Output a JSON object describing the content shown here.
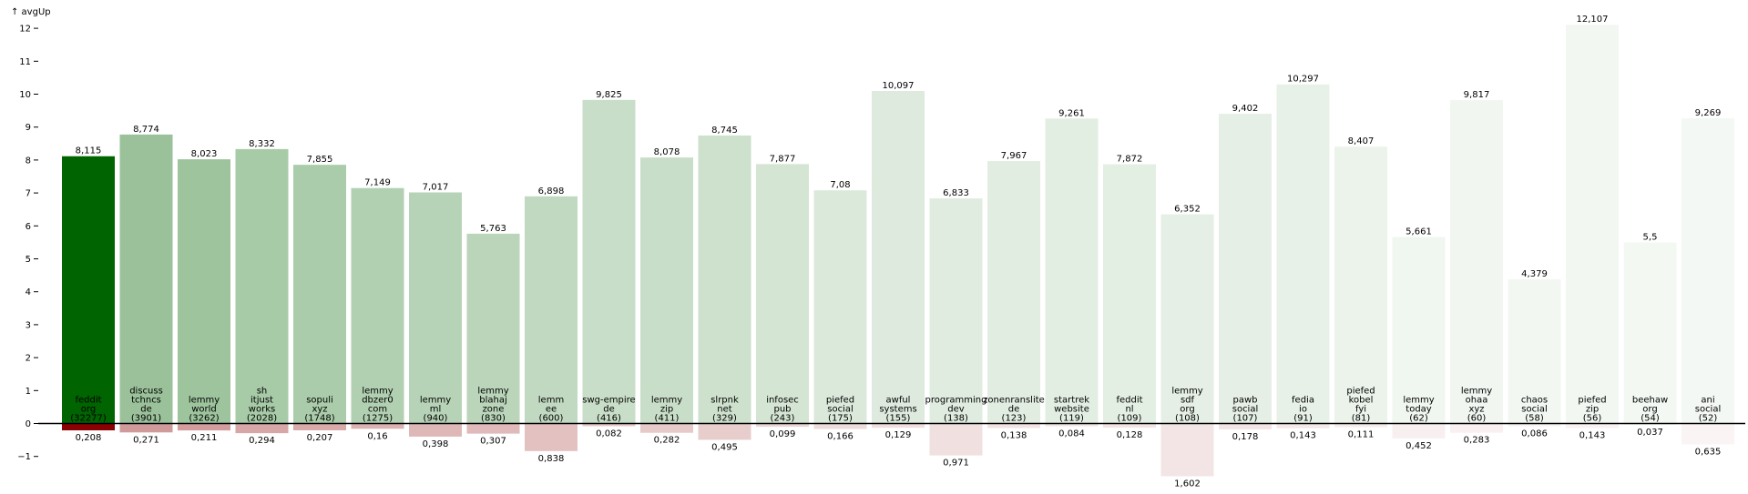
{
  "chart_data": {
    "type": "bar",
    "ylabel": "↑ avgUp",
    "ylim": [
      -2,
      12.2
    ],
    "yticks": [
      -1,
      0,
      1,
      2,
      3,
      4,
      5,
      6,
      7,
      8,
      9,
      10,
      11,
      12
    ],
    "grid": false,
    "colors": {
      "up_strong": "#006400",
      "down_strong": "#8b0000"
    },
    "categories": [
      {
        "label": [
          "feddit",
          "org",
          "(32277)"
        ],
        "count": 32277
      },
      {
        "label": [
          "discuss",
          "tchncs",
          "de",
          "(3901)"
        ],
        "count": 3901
      },
      {
        "label": [
          "lemmy",
          "world",
          "(3262)"
        ],
        "count": 3262
      },
      {
        "label": [
          "sh",
          "itjust",
          "works",
          "(2028)"
        ],
        "count": 2028
      },
      {
        "label": [
          "sopuli",
          "xyz",
          "(1748)"
        ],
        "count": 1748
      },
      {
        "label": [
          "lemmy",
          "dbzer0",
          "com",
          "(1275)"
        ],
        "count": 1275
      },
      {
        "label": [
          "lemmy",
          "ml",
          "(940)"
        ],
        "count": 940
      },
      {
        "label": [
          "lemmy",
          "blahaj",
          "zone",
          "(830)"
        ],
        "count": 830
      },
      {
        "label": [
          "lemm",
          "ee",
          "(600)"
        ],
        "count": 600
      },
      {
        "label": [
          "swg-empire",
          "de",
          "(416)"
        ],
        "count": 416
      },
      {
        "label": [
          "lemmy",
          "zip",
          "(411)"
        ],
        "count": 411
      },
      {
        "label": [
          "slrpnk",
          "net",
          "(329)"
        ],
        "count": 329
      },
      {
        "label": [
          "infosec",
          "pub",
          "(243)"
        ],
        "count": 243
      },
      {
        "label": [
          "piefed",
          "social",
          "(175)"
        ],
        "count": 175
      },
      {
        "label": [
          "awful",
          "systems",
          "(155)"
        ],
        "count": 155
      },
      {
        "label": [
          "programming",
          "dev",
          "(138)"
        ],
        "count": 138
      },
      {
        "label": [
          "zonenranslite",
          "de",
          "(123)"
        ],
        "count": 123
      },
      {
        "label": [
          "startrek",
          "website",
          "(119)"
        ],
        "count": 119
      },
      {
        "label": [
          "feddit",
          "nl",
          "(109)"
        ],
        "count": 109
      },
      {
        "label": [
          "lemmy",
          "sdf",
          "org",
          "(108)"
        ],
        "count": 108
      },
      {
        "label": [
          "pawb",
          "social",
          "(107)"
        ],
        "count": 107
      },
      {
        "label": [
          "fedia",
          "io",
          "(91)"
        ],
        "count": 91
      },
      {
        "label": [
          "piefed",
          "kobel",
          "fyi",
          "(81)"
        ],
        "count": 81
      },
      {
        "label": [
          "lemmy",
          "today",
          "(62)"
        ],
        "count": 62
      },
      {
        "label": [
          "lemmy",
          "ohaa",
          "xyz",
          "(60)"
        ],
        "count": 60
      },
      {
        "label": [
          "chaos",
          "social",
          "(58)"
        ],
        "count": 58
      },
      {
        "label": [
          "piefed",
          "zip",
          "(56)"
        ],
        "count": 56
      },
      {
        "label": [
          "beehaw",
          "org",
          "(54)"
        ],
        "count": 54
      },
      {
        "label": [
          "ani",
          "social",
          "(52)"
        ],
        "count": 52
      }
    ],
    "series": [
      {
        "values": [
          8.115,
          8.774,
          8.023,
          8.332,
          7.855,
          7.149,
          7.017,
          5.763,
          6.898,
          9.825,
          8.078,
          8.745,
          7.877,
          7.08,
          10.097,
          6.833,
          7.967,
          9.261,
          7.872,
          6.352,
          9.402,
          10.297,
          8.407,
          5.661,
          9.817,
          4.379,
          12.107,
          5.5,
          9.269
        ],
        "labels": [
          "8,115",
          "8,774",
          "8,023",
          "8,332",
          "7,855",
          "7,149",
          "7,017",
          "5,763",
          "6,898",
          "9,825",
          "8,078",
          "8,745",
          "7,877",
          "7,08",
          "10,097",
          "6,833",
          "7,967",
          "9,261",
          "7,872",
          "6,352",
          "9,402",
          "10,297",
          "8,407",
          "5,661",
          "9,817",
          "4,379",
          "12,107",
          "5,5",
          "9,269"
        ]
      },
      {
        "values": [
          -0.208,
          -0.271,
          -0.211,
          -0.294,
          -0.207,
          -0.16,
          -0.398,
          -0.307,
          -0.838,
          -0.082,
          -0.282,
          -0.495,
          -0.099,
          -0.166,
          -0.129,
          -0.971,
          -0.138,
          -0.084,
          -0.128,
          -1.602,
          -0.178,
          -0.143,
          -0.111,
          -0.452,
          -0.283,
          -0.086,
          -0.143,
          -0.037,
          -0.635
        ],
        "labels": [
          "0,208",
          "0,271",
          "0,211",
          "0,294",
          "0,207",
          "0,16",
          "0,398",
          "0,307",
          "0,838",
          "0,082",
          "0,282",
          "0,495",
          "0,099",
          "0,166",
          "0,129",
          "0,971",
          "0,138",
          "0,084",
          "0,128",
          "1,602",
          "0,178",
          "0,143",
          "0,111",
          "0,452",
          "0,283",
          "0,086",
          "0,143",
          "0,037",
          "0,635"
        ]
      }
    ]
  }
}
